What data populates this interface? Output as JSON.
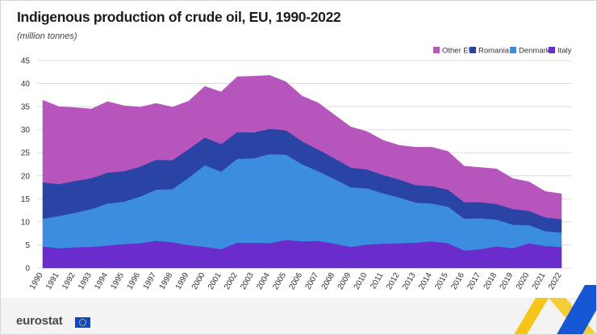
{
  "header": {
    "title": "Indigenous production of crude oil, EU, 1990-2022",
    "subtitle": "(million tonnes)"
  },
  "footer": {
    "logo_text": "eurostat"
  },
  "colors": {
    "other_eu": "#b656bd",
    "romania": "#2a44a6",
    "denmark": "#3b8de0",
    "italy": "#6a2dcc",
    "grid": "#dcdcdc",
    "plot_background": "#ffffff",
    "logo_flag": "#0e47cb",
    "accent_yellow": "#f5c518",
    "accent_blue": "#1557d4"
  },
  "chart_data": {
    "type": "area",
    "stacked": true,
    "title": "Indigenous production of crude oil, EU, 1990-2022",
    "subtitle": "(million tonnes)",
    "ylim": [
      0,
      45
    ],
    "yticks": [
      0,
      5,
      10,
      15,
      20,
      25,
      30,
      35,
      40,
      45
    ],
    "grid": true,
    "legend_position": "top-right",
    "categories": [
      "1990",
      "1991",
      "1992",
      "1993",
      "1994",
      "1995",
      "1996",
      "1997",
      "1998",
      "1999",
      "2000",
      "2001",
      "2002",
      "2003",
      "2004",
      "2005",
      "2006",
      "2007",
      "2008",
      "2009",
      "2010",
      "2011",
      "2012",
      "2013",
      "2014",
      "2015",
      "2016",
      "2017",
      "2018",
      "2019",
      "2020",
      "2021",
      "2022"
    ],
    "series": [
      {
        "name": "Italy",
        "color": "#6a2dcc",
        "values": [
          4.7,
          4.3,
          4.5,
          4.6,
          4.9,
          5.2,
          5.4,
          5.9,
          5.6,
          5.0,
          4.6,
          4.1,
          5.5,
          5.5,
          5.4,
          6.1,
          5.8,
          5.9,
          5.3,
          4.6,
          5.1,
          5.3,
          5.4,
          5.5,
          5.8,
          5.4,
          3.8,
          4.1,
          4.7,
          4.3,
          5.4,
          4.8,
          4.6
        ]
      },
      {
        "name": "Denmark",
        "color": "#3b8de0",
        "values": [
          6.0,
          7.0,
          7.5,
          8.2,
          9.1,
          9.2,
          10.1,
          11.1,
          11.5,
          14.6,
          17.7,
          16.8,
          18.2,
          18.3,
          19.3,
          18.5,
          16.7,
          15.1,
          14.0,
          12.9,
          12.2,
          10.9,
          9.9,
          8.7,
          8.2,
          7.9,
          6.9,
          6.7,
          5.8,
          5.1,
          3.9,
          3.2,
          3.1
        ]
      },
      {
        "name": "Romania",
        "color": "#2a44a6",
        "values": [
          7.9,
          6.9,
          6.9,
          6.7,
          6.7,
          6.6,
          6.5,
          6.5,
          6.3,
          6.2,
          6.0,
          6.0,
          5.8,
          5.6,
          5.5,
          5.3,
          5.0,
          4.7,
          4.5,
          4.3,
          4.1,
          4.0,
          3.9,
          3.8,
          3.8,
          3.7,
          3.6,
          3.5,
          3.4,
          3.4,
          3.1,
          3.0,
          2.9
        ]
      },
      {
        "name": "Other EU",
        "color": "#b656bd",
        "values": [
          17.8,
          16.8,
          15.9,
          15.0,
          15.4,
          14.2,
          12.9,
          12.2,
          11.5,
          10.4,
          11.1,
          11.3,
          12.0,
          12.2,
          11.6,
          10.5,
          9.8,
          10.1,
          9.4,
          8.8,
          8.2,
          7.5,
          7.4,
          8.2,
          8.4,
          8.3,
          7.8,
          7.5,
          7.6,
          6.6,
          6.3,
          5.6,
          5.5
        ]
      }
    ],
    "legend_order": [
      "Other EU",
      "Romania",
      "Denmark",
      "Italy"
    ]
  }
}
